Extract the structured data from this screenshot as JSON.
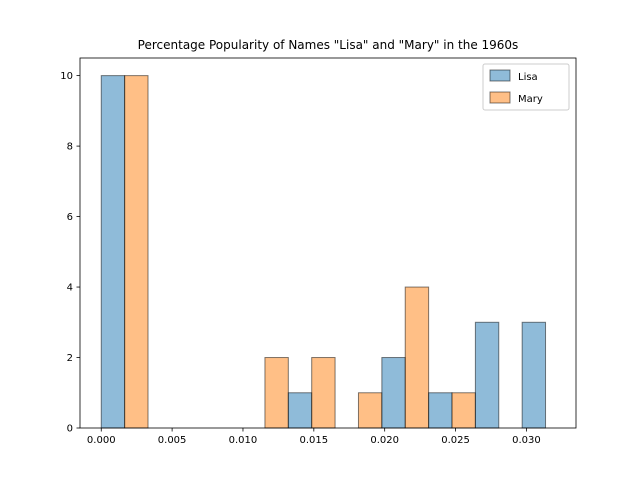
{
  "chart_data": {
    "type": "bar",
    "title": "Percentage Popularity of Names \"Lisa\" and \"Mary\" in the 1960s",
    "xlabel": "",
    "ylabel": "",
    "xlim": [
      -0.0015,
      0.0335
    ],
    "ylim": [
      0,
      10.5
    ],
    "x_ticks": [
      "0.000",
      "0.005",
      "0.010",
      "0.015",
      "0.020",
      "0.025",
      "0.030"
    ],
    "y_ticks": [
      "0",
      "2",
      "4",
      "6",
      "8",
      "10"
    ],
    "bin_edges": [
      0.0,
      0.0033,
      0.0066,
      0.0099,
      0.0132,
      0.0165,
      0.0198,
      0.0231,
      0.0264,
      0.0297,
      0.033
    ],
    "series": [
      {
        "name": "Lisa",
        "color": "#1f77b4",
        "values": [
          10,
          0,
          0,
          0,
          1,
          0,
          2,
          1,
          3,
          3
        ]
      },
      {
        "name": "Mary",
        "color": "#ff7f0e",
        "values": [
          10,
          0,
          0,
          2,
          2,
          1,
          4,
          1,
          0,
          0
        ]
      }
    ],
    "legend_position": "top-right",
    "grid": false
  }
}
